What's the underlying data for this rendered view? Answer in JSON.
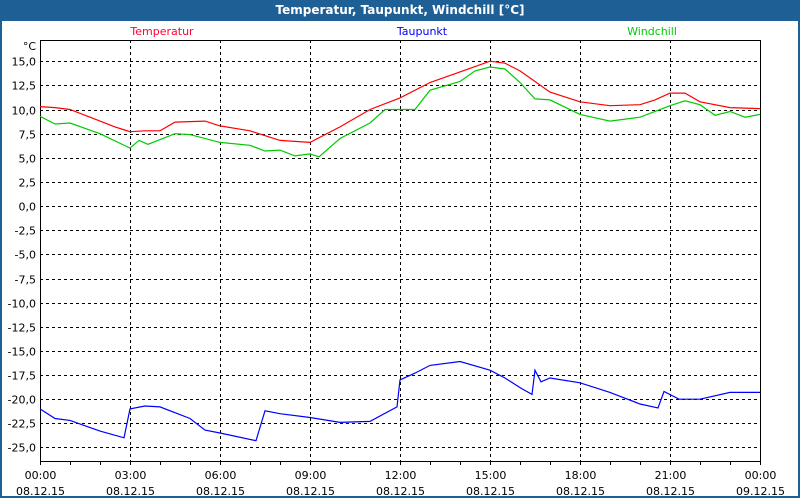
{
  "window": {
    "title": "Temperatur, Taupunkt, Windchill [°C]"
  },
  "chart_data": {
    "type": "line",
    "title": "Temperatur, Taupunkt, Windchill [°C]",
    "ylabel": "°C",
    "xlabel": "",
    "ylim": [
      -26.4,
      17.2
    ],
    "xlim": [
      0,
      24
    ],
    "grid": true,
    "yticks": [
      15,
      12.5,
      10,
      7.5,
      5,
      2.5,
      0,
      -2.5,
      -5,
      -7.5,
      -10,
      -12.5,
      -15,
      -17.5,
      -20,
      -22.5,
      -25
    ],
    "ytick_labels": [
      "15,0",
      "12,5",
      "10,0",
      "7,5",
      "5,0",
      "2,5",
      "0,0",
      "-2,5",
      "-5,0",
      "-7,5",
      "-10,0",
      "-12,5",
      "-15,0",
      "-17,5",
      "-20,0",
      "-22,5",
      "-25,0"
    ],
    "xticks": [
      0,
      3,
      6,
      9,
      12,
      15,
      18,
      21,
      24
    ],
    "xtick_labels": [
      [
        "00:00",
        "08.12.15"
      ],
      [
        "03:00",
        "08.12.15"
      ],
      [
        "06:00",
        "08.12.15"
      ],
      [
        "09:00",
        "08.12.15"
      ],
      [
        "12:00",
        "08.12.15"
      ],
      [
        "15:00",
        "08.12.15"
      ],
      [
        "18:00",
        "08.12.15"
      ],
      [
        "21:00",
        "08.12.15"
      ],
      [
        "00:00",
        "09.12.15"
      ]
    ],
    "legend_placement": "top",
    "series": [
      {
        "name": "Temperatur",
        "color": "#ff0000",
        "label_color": "#ff0033",
        "points": [
          [
            0,
            10.3
          ],
          [
            0.5,
            10.2
          ],
          [
            1,
            10.0
          ],
          [
            2,
            8.8
          ],
          [
            2.5,
            8.2
          ],
          [
            3,
            7.7
          ],
          [
            3.5,
            7.8
          ],
          [
            4,
            7.8
          ],
          [
            4.5,
            8.7
          ],
          [
            5.5,
            8.8
          ],
          [
            6,
            8.3
          ],
          [
            7,
            7.8
          ],
          [
            8,
            6.8
          ],
          [
            9,
            6.6
          ],
          [
            10,
            8.2
          ],
          [
            11,
            10.0
          ],
          [
            12,
            11.2
          ],
          [
            13,
            12.8
          ],
          [
            14,
            13.9
          ],
          [
            15,
            15.0
          ],
          [
            15.5,
            14.8
          ],
          [
            16,
            14.0
          ],
          [
            17,
            11.8
          ],
          [
            18,
            10.8
          ],
          [
            19,
            10.4
          ],
          [
            20,
            10.5
          ],
          [
            20.5,
            11.0
          ],
          [
            21,
            11.7
          ],
          [
            21.5,
            11.7
          ],
          [
            22,
            10.8
          ],
          [
            23,
            10.2
          ],
          [
            24,
            10.1
          ]
        ]
      },
      {
        "name": "Taupunkt",
        "color": "#0000ff",
        "label_color": "#0000ff",
        "points": [
          [
            0,
            -21.0
          ],
          [
            0.5,
            -22.0
          ],
          [
            1,
            -22.2
          ],
          [
            2,
            -23.3
          ],
          [
            2.8,
            -24.0
          ],
          [
            3,
            -21.0
          ],
          [
            3.5,
            -20.7
          ],
          [
            4,
            -20.8
          ],
          [
            5,
            -22.0
          ],
          [
            5.5,
            -23.2
          ],
          [
            6,
            -23.5
          ],
          [
            7.2,
            -24.3
          ],
          [
            7.5,
            -21.2
          ],
          [
            8,
            -21.5
          ],
          [
            9,
            -21.9
          ],
          [
            10,
            -22.4
          ],
          [
            11,
            -22.3
          ],
          [
            11.9,
            -20.8
          ],
          [
            12,
            -18.0
          ],
          [
            12.5,
            -17.3
          ],
          [
            13,
            -16.5
          ],
          [
            14,
            -16.1
          ],
          [
            15,
            -17.0
          ],
          [
            15.5,
            -17.8
          ],
          [
            16,
            -18.8
          ],
          [
            16.4,
            -19.5
          ],
          [
            16.5,
            -17.0
          ],
          [
            16.7,
            -18.2
          ],
          [
            17,
            -17.8
          ],
          [
            18,
            -18.3
          ],
          [
            19,
            -19.3
          ],
          [
            20,
            -20.5
          ],
          [
            20.6,
            -20.9
          ],
          [
            20.8,
            -19.2
          ],
          [
            21.3,
            -20.0
          ],
          [
            22,
            -20.0
          ],
          [
            23,
            -19.3
          ],
          [
            24,
            -19.3
          ]
        ]
      },
      {
        "name": "Windchill",
        "color": "#00cc00",
        "label_color": "#00cc00",
        "points": [
          [
            0,
            9.3
          ],
          [
            0.5,
            8.5
          ],
          [
            1,
            8.6
          ],
          [
            2,
            7.5
          ],
          [
            3,
            6.0
          ],
          [
            3.3,
            6.8
          ],
          [
            3.6,
            6.4
          ],
          [
            4.5,
            7.5
          ],
          [
            5,
            7.4
          ],
          [
            6,
            6.6
          ],
          [
            7,
            6.3
          ],
          [
            7.5,
            5.7
          ],
          [
            8,
            5.8
          ],
          [
            8.5,
            5.2
          ],
          [
            9,
            5.4
          ],
          [
            9.3,
            5.1
          ],
          [
            10,
            7.0
          ],
          [
            11,
            8.6
          ],
          [
            11.5,
            10.0
          ],
          [
            12.5,
            10.0
          ],
          [
            13,
            12.0
          ],
          [
            14,
            12.9
          ],
          [
            14.5,
            14.0
          ],
          [
            15,
            14.4
          ],
          [
            15.5,
            14.2
          ],
          [
            16,
            12.8
          ],
          [
            16.5,
            11.1
          ],
          [
            17,
            11.0
          ],
          [
            18,
            9.5
          ],
          [
            19,
            8.8
          ],
          [
            20,
            9.2
          ],
          [
            21,
            10.4
          ],
          [
            21.5,
            10.9
          ],
          [
            22,
            10.5
          ],
          [
            22.5,
            9.4
          ],
          [
            23,
            9.8
          ],
          [
            23.5,
            9.2
          ],
          [
            24,
            9.5
          ]
        ]
      }
    ]
  }
}
